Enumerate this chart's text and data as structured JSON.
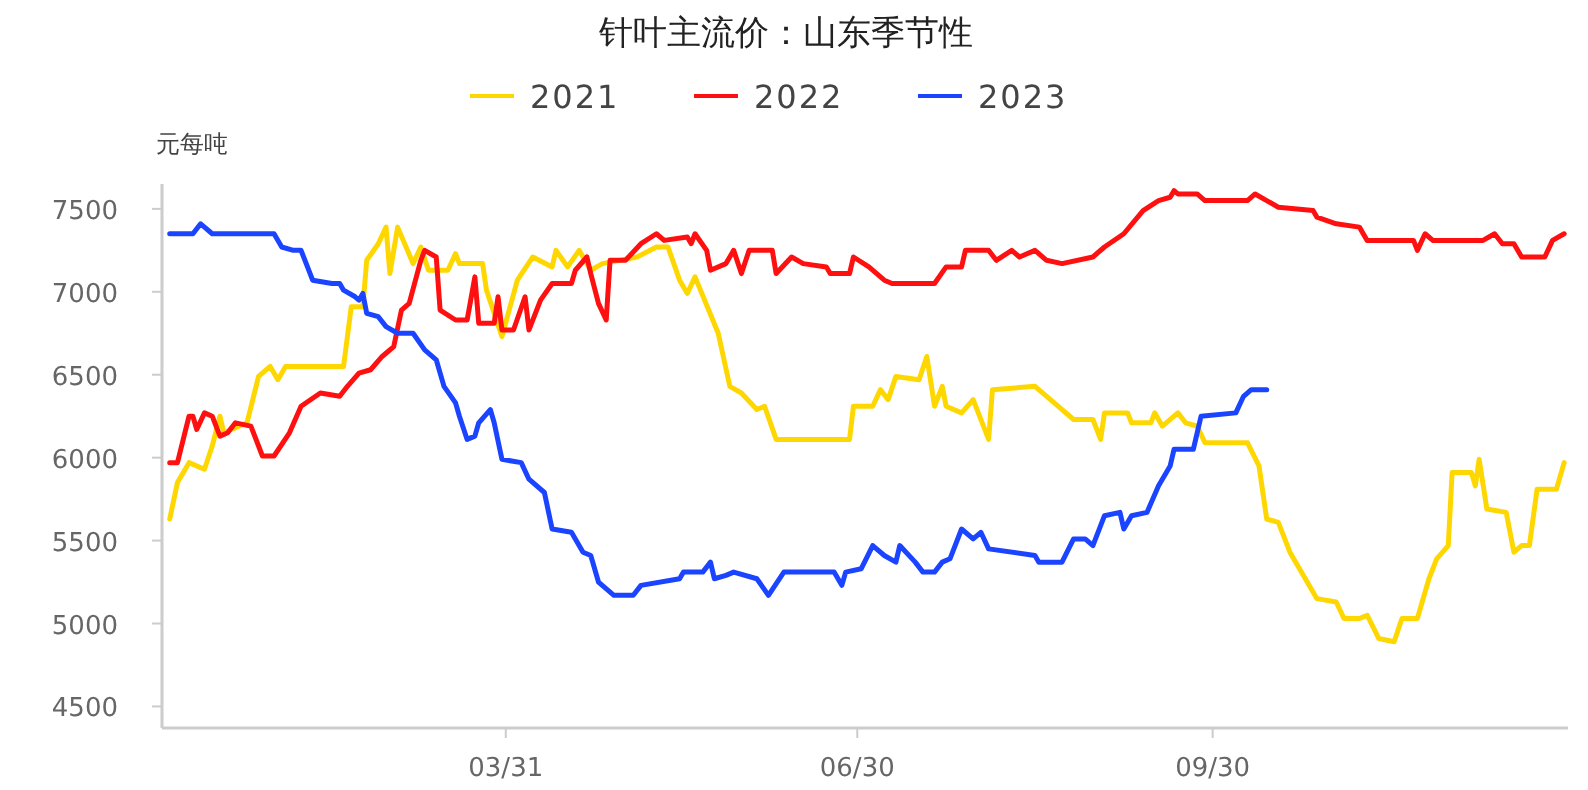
{
  "chart_data": {
    "type": "line",
    "title": "针叶主流价：山东季节性",
    "ylabel": "元每吨",
    "legend": "top",
    "xlim": [
      "--01-01",
      "--12-31"
    ],
    "xticks": [
      {
        "value": "--03-31",
        "label": "03/31"
      },
      {
        "value": "--06-30",
        "label": "06/30"
      },
      {
        "value": "--09-30",
        "label": "09/30"
      }
    ],
    "ylim": [
      4370,
      7650
    ],
    "yticks": [
      4500,
      5000,
      5500,
      6000,
      6500,
      7000,
      7500
    ],
    "series": [
      {
        "name": "2021",
        "color": "#ffd700",
        "x": [
          "--01-03",
          "--01-05",
          "--01-08",
          "--01-12",
          "--01-14",
          "--01-16",
          "--01-17",
          "--01-23",
          "--01-26",
          "--01-29",
          "--01-31",
          "--02-02",
          "--02-17",
          "--02-19",
          "--02-22",
          "--02-23",
          "--02-26",
          "--02-28",
          "--03-01",
          "--03-03",
          "--03-07",
          "--03-09",
          "--03-11",
          "--03-16",
          "--03-18",
          "--03-19",
          "--03-25",
          "--03-26",
          "--03-30",
          "--04-03",
          "--04-07",
          "--04-12",
          "--04-13",
          "--04-16",
          "--04-19",
          "--04-22",
          "--04-25",
          "--05-04",
          "--05-09",
          "--05-12",
          "--05-15",
          "--05-17",
          "--05-19",
          "--05-25",
          "--05-28",
          "--05-31",
          "--06-04",
          "--06-06",
          "--06-09",
          "--06-28",
          "--06-29",
          "--07-04",
          "--07-06",
          "--07-08",
          "--07-10",
          "--07-16",
          "--07-18",
          "--07-20",
          "--07-22",
          "--07-23",
          "--07-27",
          "--07-30",
          "--08-03",
          "--08-04",
          "--08-15",
          "--08-20",
          "--08-25",
          "--08-30",
          "--09-01",
          "--09-02",
          "--09-08",
          "--09-09",
          "--09-14",
          "--09-15",
          "--09-17",
          "--09-21",
          "--09-23",
          "--09-26",
          "--09-28",
          "--10-09",
          "--10-12",
          "--10-14",
          "--10-17",
          "--10-20",
          "--10-24",
          "--10-27",
          "--11-01",
          "--11-03",
          "--11-07",
          "--11-09",
          "--11-12",
          "--11-16",
          "--11-18",
          "--11-22",
          "--11-25",
          "--11-27",
          "--11-30",
          "--12-01",
          "--12-06",
          "--12-07",
          "--12-08",
          "--12-10",
          "--12-15",
          "--12-17",
          "--12-19",
          "--12-21",
          "--12-23",
          "--12-28",
          "--12-30"
        ],
        "values": [
          5630,
          5850,
          5970,
          5930,
          6070,
          6250,
          6150,
          6210,
          6490,
          6550,
          6470,
          6550,
          6550,
          6910,
          6910,
          7190,
          7290,
          7390,
          7110,
          7390,
          7170,
          7270,
          7130,
          7130,
          7230,
          7170,
          7170,
          7010,
          6730,
          7070,
          7210,
          7150,
          7250,
          7150,
          7250,
          7130,
          7170,
          7210,
          7270,
          7270,
          7070,
          6990,
          7090,
          6750,
          6430,
          6390,
          6290,
          6310,
          6110,
          6110,
          6310,
          6310,
          6410,
          6350,
          6490,
          6470,
          6610,
          6310,
          6430,
          6310,
          6270,
          6350,
          6110,
          6410,
          6430,
          6330,
          6230,
          6230,
          6110,
          6270,
          6270,
          6210,
          6210,
          6270,
          6190,
          6270,
          6210,
          6190,
          6090,
          6090,
          5950,
          5630,
          5610,
          5430,
          5270,
          5150,
          5130,
          5030,
          5030,
          5050,
          4910,
          4890,
          5030,
          5030,
          5270,
          5390,
          5470,
          5910,
          5910,
          5830,
          5990,
          5690,
          5670,
          5430,
          5470,
          5470,
          5810,
          5810,
          5970
        ]
      },
      {
        "name": "2022",
        "color": "#ff1010",
        "x": [
          "--01-03",
          "--01-05",
          "--01-08",
          "--01-09",
          "--01-10",
          "--01-12",
          "--01-14",
          "--01-16",
          "--01-18",
          "--01-20",
          "--01-24",
          "--01-27",
          "--01-30",
          "--02-03",
          "--02-06",
          "--02-11",
          "--02-16",
          "--02-18",
          "--02-21",
          "--02-24",
          "--02-27",
          "--03-02",
          "--03-04",
          "--03-06",
          "--03-09",
          "--03-10",
          "--03-13",
          "--03-14",
          "--03-18",
          "--03-21",
          "--03-23",
          "--03-24",
          "--03-28",
          "--03-29",
          "--03-30",
          "--04-02",
          "--04-05",
          "--04-06",
          "--04-09",
          "--04-12",
          "--04-17",
          "--04-18",
          "--04-21",
          "--04-22",
          "--04-24",
          "--04-26",
          "--04-27",
          "--05-01",
          "--05-05",
          "--05-09",
          "--05-11",
          "--05-17",
          "--05-18",
          "--05-19",
          "--05-22",
          "--05-23",
          "--05-27",
          "--05-29",
          "--05-31",
          "--06-02",
          "--06-08",
          "--06-09",
          "--06-13",
          "--06-16",
          "--06-22",
          "--06-23",
          "--06-28",
          "--06-29",
          "--07-03",
          "--07-07",
          "--07-09",
          "--07-20",
          "--07-23",
          "--07-27",
          "--07-28",
          "--08-03",
          "--08-05",
          "--08-09",
          "--08-11",
          "--08-15",
          "--08-18",
          "--08-22",
          "--08-30",
          "--09-02",
          "--09-07",
          "--09-12",
          "--09-16",
          "--09-19",
          "--09-20",
          "--09-21",
          "--09-26",
          "--09-28",
          "--10-09",
          "--10-11",
          "--10-14",
          "--10-17",
          "--10-26",
          "--10-27",
          "--11-01",
          "--11-07",
          "--11-09",
          "--11-21",
          "--11-22",
          "--11-24",
          "--11-26",
          "--12-09",
          "--12-12",
          "--12-14",
          "--12-17",
          "--12-19",
          "--12-25",
          "--12-27",
          "--12-30"
        ],
        "values": [
          5970,
          5970,
          6250,
          6250,
          6170,
          6270,
          6250,
          6130,
          6150,
          6210,
          6190,
          6010,
          6010,
          6150,
          6310,
          6390,
          6370,
          6430,
          6510,
          6530,
          6610,
          6670,
          6890,
          6930,
          7190,
          7250,
          7210,
          6890,
          6830,
          6830,
          7090,
          6810,
          6810,
          6970,
          6770,
          6770,
          6970,
          6770,
          6950,
          7050,
          7050,
          7130,
          7210,
          7110,
          6930,
          6830,
          7190,
          7190,
          7290,
          7350,
          7310,
          7330,
          7290,
          7350,
          7250,
          7130,
          7170,
          7250,
          7110,
          7250,
          7250,
          7110,
          7210,
          7170,
          7150,
          7110,
          7110,
          7210,
          7150,
          7070,
          7050,
          7050,
          7150,
          7150,
          7250,
          7250,
          7190,
          7250,
          7210,
          7250,
          7190,
          7170,
          7210,
          7270,
          7350,
          7490,
          7550,
          7570,
          7610,
          7590,
          7590,
          7550,
          7550,
          7590,
          7550,
          7510,
          7490,
          7450,
          7410,
          7390,
          7310,
          7310,
          7250,
          7350,
          7310,
          7310,
          7350,
          7290,
          7290,
          7210,
          7210,
          7310,
          7350
        ]
      },
      {
        "name": "2023",
        "color": "#1a44ff",
        "x": [
          "--01-03",
          "--01-09",
          "--01-11",
          "--01-12",
          "--01-14",
          "--01-30",
          "--02-01",
          "--02-04",
          "--02-06",
          "--02-09",
          "--02-14",
          "--02-16",
          "--02-17",
          "--02-20",
          "--02-21",
          "--02-22",
          "--02-23",
          "--02-26",
          "--02-28",
          "--03-03",
          "--03-07",
          "--03-10",
          "--03-13",
          "--03-15",
          "--03-18",
          "--03-19",
          "--03-21",
          "--03-23",
          "--03-24",
          "--03-27",
          "--03-28",
          "--03-30",
          "--04-04",
          "--04-06",
          "--04-10",
          "--04-12",
          "--04-17",
          "--04-20",
          "--04-22",
          "--04-24",
          "--04-28",
          "--05-03",
          "--05-05",
          "--05-15",
          "--05-16",
          "--05-21",
          "--05-23",
          "--05-24",
          "--05-27",
          "--05-29",
          "--06-04",
          "--06-07",
          "--06-11",
          "--06-24",
          "--06-26",
          "--06-27",
          "--07-01",
          "--07-04",
          "--07-07",
          "--07-10",
          "--07-11",
          "--07-15",
          "--07-17",
          "--07-20",
          "--07-22",
          "--07-24",
          "--07-27",
          "--07-30",
          "--08-01",
          "--08-03",
          "--08-15",
          "--08-16",
          "--08-22",
          "--08-25",
          "--08-28",
          "--08-30",
          "--09-02",
          "--09-06",
          "--09-07",
          "--09-09",
          "--09-13",
          "--09-16",
          "--09-19",
          "--09-20",
          "--09-25",
          "--09-27",
          "--10-06",
          "--10-08",
          "--10-10",
          "--10-14"
        ],
        "values": [
          7350,
          7350,
          7410,
          7390,
          7350,
          7350,
          7270,
          7250,
          7250,
          7070,
          7050,
          7050,
          7010,
          6970,
          6950,
          6990,
          6870,
          6850,
          6790,
          6750,
          6750,
          6650,
          6590,
          6430,
          6330,
          6250,
          6110,
          6130,
          6210,
          6290,
          6210,
          5990,
          5970,
          5870,
          5790,
          5570,
          5550,
          5430,
          5410,
          5250,
          5170,
          5170,
          5230,
          5270,
          5310,
          5310,
          5370,
          5270,
          5290,
          5310,
          5270,
          5170,
          5310,
          5310,
          5230,
          5310,
          5330,
          5470,
          5410,
          5370,
          5470,
          5370,
          5310,
          5310,
          5370,
          5390,
          5570,
          5510,
          5550,
          5450,
          5410,
          5370,
          5370,
          5510,
          5510,
          5470,
          5650,
          5670,
          5570,
          5650,
          5670,
          5830,
          5950,
          6050,
          6050,
          6250,
          6270,
          6370,
          6410,
          6410
        ]
      }
    ]
  }
}
